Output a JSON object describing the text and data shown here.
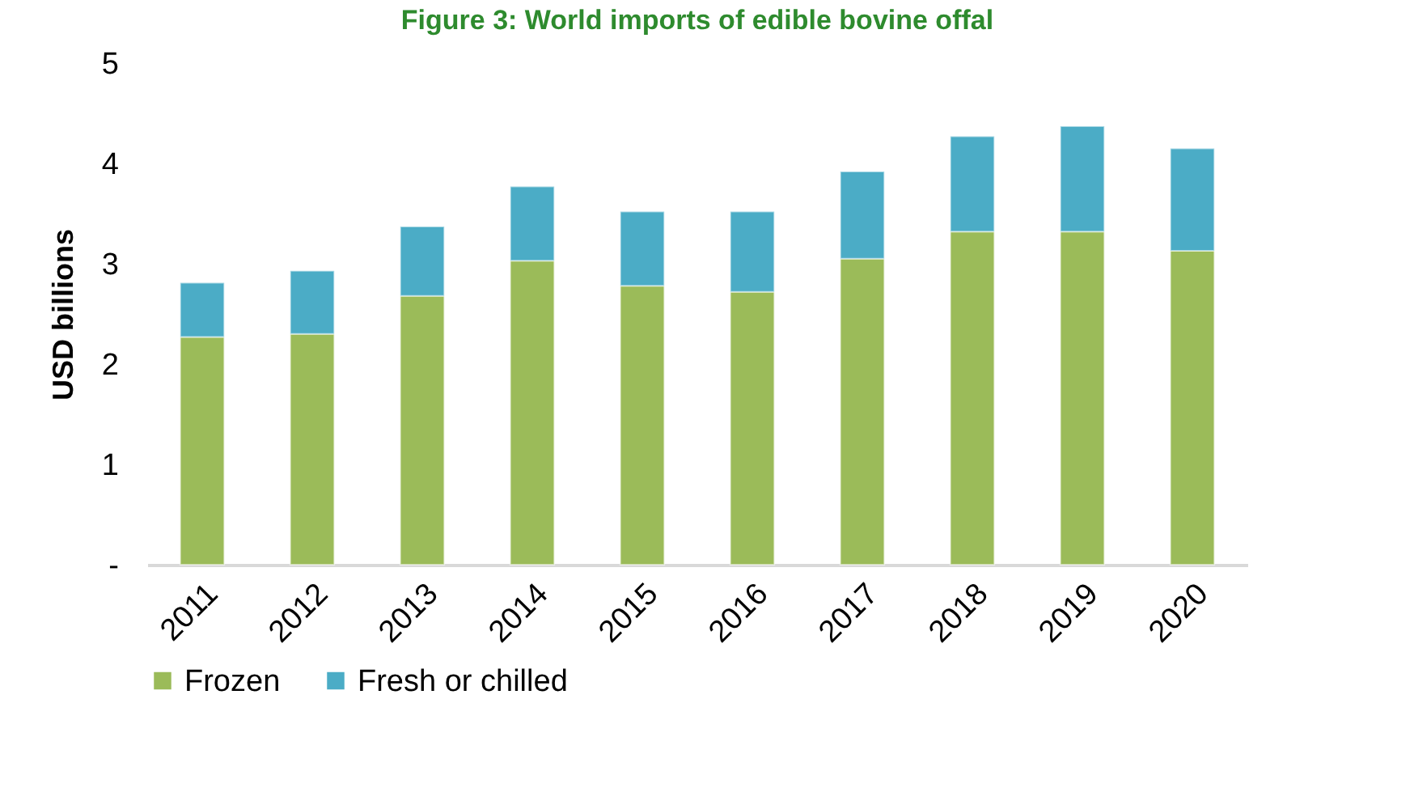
{
  "chart_data": {
    "type": "bar",
    "title": "Figure 3: World imports of edible bovine offal",
    "ylabel": "USD billions",
    "stacked": true,
    "categories": [
      "2011",
      "2012",
      "2013",
      "2014",
      "2015",
      "2016",
      "2017",
      "2018",
      "2019",
      "2020"
    ],
    "series": [
      {
        "name": "Frozen",
        "color": "#9bbb59",
        "values": [
          2.27,
          2.3,
          2.68,
          3.03,
          2.78,
          2.72,
          3.05,
          3.32,
          3.32,
          3.13
        ]
      },
      {
        "name": "Fresh or chilled",
        "color": "#4bacc6",
        "values": [
          0.54,
          0.63,
          0.69,
          0.74,
          0.74,
          0.8,
          0.87,
          0.95,
          1.05,
          1.02
        ]
      }
    ],
    "ylim": [
      0,
      5
    ],
    "yticks": [
      {
        "value": 0,
        "label": "-"
      },
      1,
      2,
      3,
      4,
      5
    ],
    "grid": false,
    "legend": "bottom"
  }
}
